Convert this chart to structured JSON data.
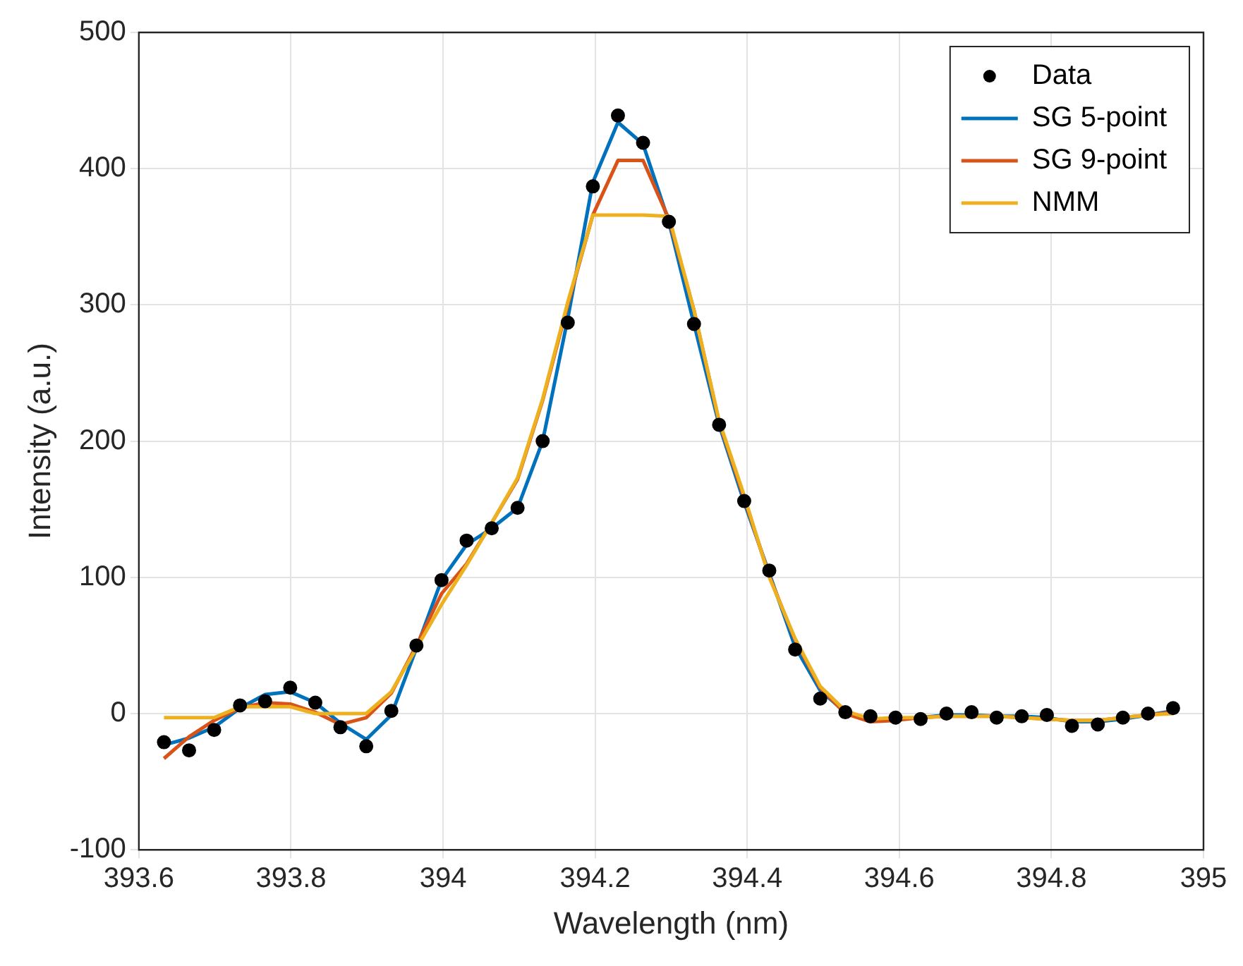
{
  "chart_data": {
    "type": "line",
    "xlabel": "Wavelength (nm)",
    "ylabel": "Intensity (a.u.)",
    "x": [
      393.633,
      393.666,
      393.699,
      393.733,
      393.766,
      393.799,
      393.832,
      393.865,
      393.899,
      393.932,
      393.965,
      393.998,
      394.031,
      394.064,
      394.098,
      394.131,
      394.164,
      394.197,
      394.23,
      394.263,
      394.297,
      394.33,
      394.363,
      394.396,
      394.429,
      394.463,
      394.496,
      394.529,
      394.562,
      394.595,
      394.628,
      394.662,
      394.695,
      394.728,
      394.761,
      394.794,
      394.827,
      394.861,
      394.894,
      394.927,
      394.96
    ],
    "series": [
      {
        "name": "Data",
        "type": "scatter",
        "marker": "circle",
        "color": "#000000",
        "values": [
          -21,
          -27,
          -12,
          6,
          9,
          19,
          8,
          -10,
          -24,
          2,
          50,
          98,
          127,
          136,
          151,
          200,
          287,
          387,
          439,
          419,
          361,
          286,
          212,
          156,
          105,
          47,
          11,
          1,
          -2,
          -3,
          -4,
          0,
          1,
          -3,
          -2,
          -1,
          -9,
          -8,
          -3,
          0,
          4
        ]
      },
      {
        "name": "SG 5-point",
        "type": "line",
        "marker": "none",
        "line_style": "solid",
        "color": "#0072bd",
        "values": [
          -23,
          -18,
          -10,
          4,
          14,
          16,
          8,
          -7,
          -19,
          -1,
          48,
          98,
          124,
          136,
          151,
          200,
          290,
          390,
          434,
          418,
          361,
          286,
          212,
          155,
          103,
          49,
          17,
          1,
          -4,
          -4,
          -3,
          -1,
          -1,
          -2,
          -2,
          -3,
          -6,
          -6,
          -4,
          -1,
          2
        ]
      },
      {
        "name": "SG 9-point",
        "type": "line",
        "marker": "none",
        "line_style": "solid",
        "color": "#d95319",
        "values": [
          -33,
          -17,
          -5,
          4,
          8,
          7,
          1,
          -8,
          -3,
          15,
          50,
          88,
          110,
          140,
          172,
          230,
          300,
          366,
          406,
          406,
          363,
          296,
          214,
          158,
          101,
          54,
          19,
          0,
          -6,
          -5,
          -3,
          -2,
          -2,
          -2,
          -3,
          -4,
          -5,
          -5,
          -3,
          -1,
          1
        ]
      },
      {
        "name": "NMM",
        "type": "line",
        "marker": "none",
        "line_style": "solid",
        "color": "#edb120",
        "values": [
          -3,
          -3,
          -3,
          5,
          5,
          5,
          0,
          0,
          0,
          16,
          48,
          80,
          109,
          140,
          173,
          231,
          302,
          366,
          366,
          366,
          365,
          296,
          215,
          160,
          100,
          55,
          20,
          2,
          -4,
          -3,
          -3,
          -2,
          -2,
          -2,
          -3,
          -4,
          -5,
          -5,
          -3,
          -1,
          0
        ]
      }
    ],
    "xlim": [
      393.6,
      395
    ],
    "xticks": [
      393.6,
      393.8,
      394,
      394.2,
      394.4,
      394.6,
      394.8,
      395
    ],
    "ylim": [
      -100,
      500
    ],
    "yticks": [
      -100,
      0,
      100,
      200,
      300,
      400,
      500
    ],
    "grid": true,
    "legend": "top right"
  }
}
